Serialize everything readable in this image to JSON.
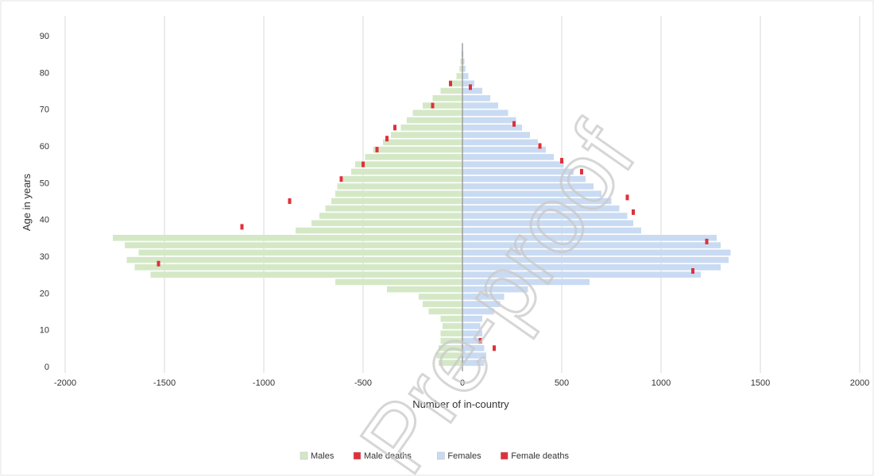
{
  "chart_data": {
    "type": "bar",
    "orientation": "horizontal",
    "xlabel": "Number of in-country",
    "ylabel": "Age in years",
    "xlim": [
      -2000,
      2000
    ],
    "ylim": [
      0,
      90
    ],
    "x_ticks": [
      {
        "value": -2000,
        "label": "-2000"
      },
      {
        "value": -1500,
        "label": "-1500"
      },
      {
        "value": -1000,
        "label": "-1000"
      },
      {
        "value": -500,
        "label": "-500"
      },
      {
        "value": 0,
        "label": "0"
      },
      {
        "value": 500,
        "label": "500"
      },
      {
        "value": 1000,
        "label": "1000"
      },
      {
        "value": 1500,
        "label": "1500"
      },
      {
        "value": 2000,
        "label": "2000"
      }
    ],
    "y_ticks": [
      0,
      10,
      20,
      30,
      40,
      50,
      60,
      70,
      80,
      90
    ],
    "grid": "vertical",
    "legend_position": "bottom",
    "age_groups": [
      1,
      3,
      5,
      7,
      9,
      11,
      13,
      15,
      17,
      19,
      21,
      23,
      25,
      27,
      29,
      31,
      33,
      35,
      37,
      39,
      41,
      43,
      45,
      47,
      49,
      51,
      53,
      55,
      57,
      59,
      61,
      63,
      65,
      67,
      69,
      71,
      73,
      75,
      77,
      79,
      81,
      83,
      85
    ],
    "series": [
      {
        "name": "Males",
        "color": "#d4e8c6",
        "values": [
          -120,
          -130,
          -120,
          -110,
          -110,
          -100,
          -110,
          -170,
          -200,
          -220,
          -380,
          -640,
          -1570,
          -1650,
          -1690,
          -1630,
          -1700,
          -1760,
          -840,
          -760,
          -720,
          -690,
          -660,
          -640,
          -630,
          -600,
          -560,
          -540,
          -490,
          -450,
          -400,
          -360,
          -310,
          -280,
          -250,
          -200,
          -150,
          -110,
          -60,
          -30,
          -15,
          -10,
          -5
        ]
      },
      {
        "name": "Females",
        "color": "#c9dbf2",
        "values": [
          110,
          120,
          110,
          100,
          100,
          90,
          100,
          160,
          190,
          210,
          330,
          640,
          1200,
          1300,
          1340,
          1350,
          1300,
          1280,
          900,
          860,
          830,
          790,
          750,
          700,
          660,
          620,
          560,
          510,
          460,
          420,
          380,
          340,
          300,
          270,
          230,
          180,
          140,
          100,
          60,
          30,
          15,
          10,
          5
        ]
      }
    ],
    "marker_series": [
      {
        "name": "Male deaths",
        "color": "#e0303a",
        "points": [
          {
            "x": -1530,
            "y": 28
          },
          {
            "x": -1110,
            "y": 38
          },
          {
            "x": -870,
            "y": 45
          },
          {
            "x": -610,
            "y": 51
          },
          {
            "x": -500,
            "y": 55
          },
          {
            "x": -430,
            "y": 59
          },
          {
            "x": -380,
            "y": 62
          },
          {
            "x": -340,
            "y": 65
          },
          {
            "x": -150,
            "y": 71
          },
          {
            "x": -60,
            "y": 77
          }
        ]
      },
      {
        "name": "Female deaths",
        "color": "#e0303a",
        "points": [
          {
            "x": 160,
            "y": 5
          },
          {
            "x": 90,
            "y": 7
          },
          {
            "x": 1160,
            "y": 26
          },
          {
            "x": 1230,
            "y": 34
          },
          {
            "x": 860,
            "y": 42
          },
          {
            "x": 830,
            "y": 46
          },
          {
            "x": 600,
            "y": 53
          },
          {
            "x": 500,
            "y": 56
          },
          {
            "x": 390,
            "y": 60
          },
          {
            "x": 260,
            "y": 66
          },
          {
            "x": 40,
            "y": 76
          }
        ]
      }
    ],
    "legend": [
      {
        "label": "Males",
        "color": "#d4e8c6"
      },
      {
        "label": "Male deaths",
        "color": "#e0303a"
      },
      {
        "label": "Females",
        "color": "#c9dbf2"
      },
      {
        "label": "Female deaths",
        "color": "#e0303a"
      }
    ]
  },
  "watermark": {
    "text": "Pre-proof",
    "color": "#c9c9c9"
  }
}
